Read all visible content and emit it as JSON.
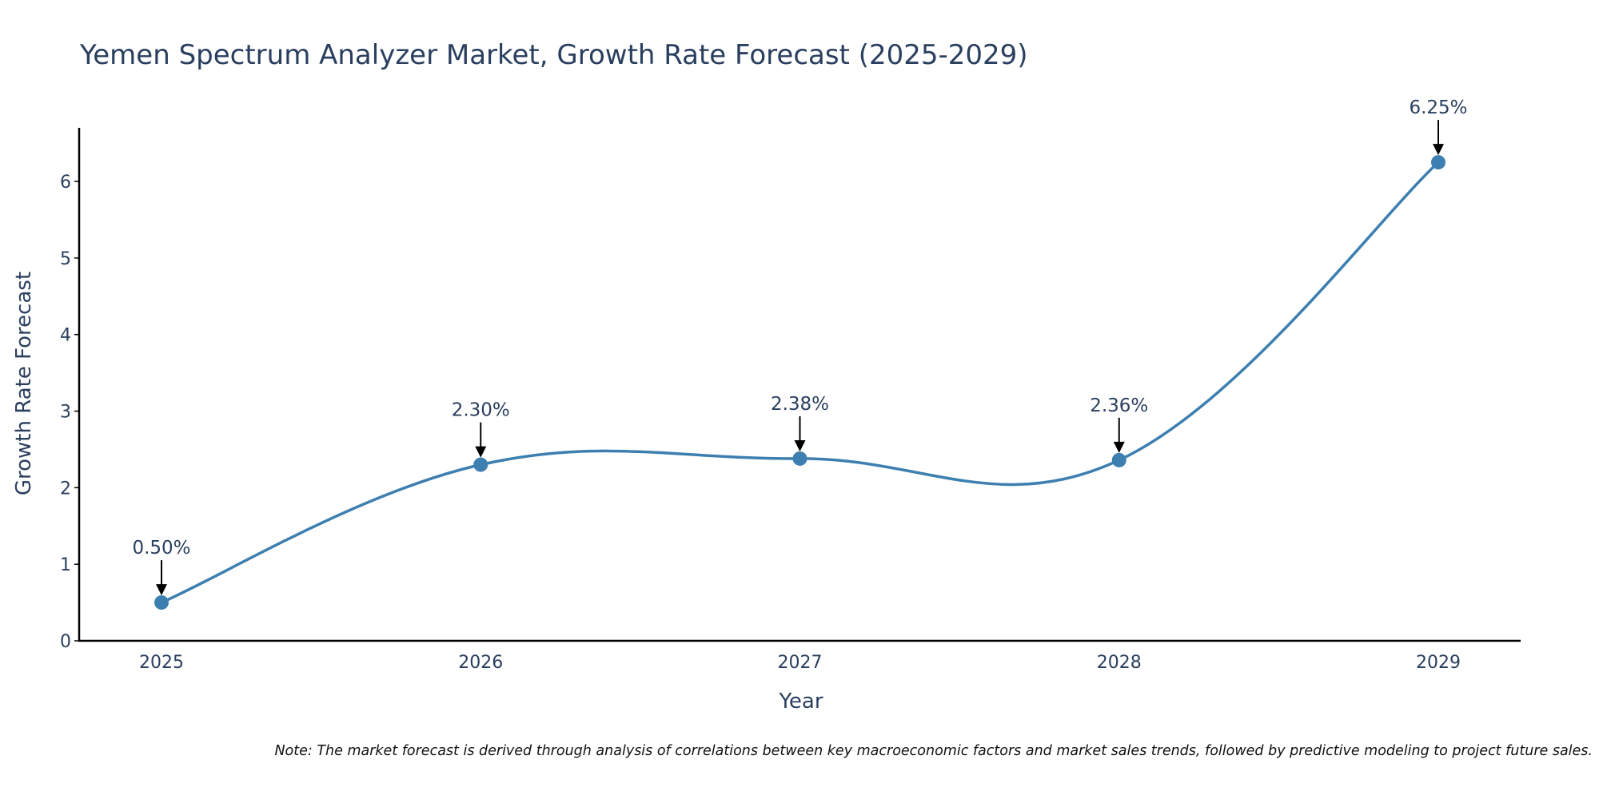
{
  "chart_data": {
    "type": "line",
    "title": "Yemen Spectrum Analyzer Market, Growth Rate Forecast (2025-2029)",
    "xlabel": "Year",
    "ylabel": "Growth Rate Forecast",
    "categories": [
      "2025",
      "2026",
      "2027",
      "2028",
      "2029"
    ],
    "values": [
      0.5,
      2.3,
      2.38,
      2.36,
      6.25
    ],
    "data_labels": [
      "0.50%",
      "2.30%",
      "2.38%",
      "2.36%",
      "6.25%"
    ],
    "ylim": [
      0,
      6.7
    ],
    "yticks": [
      0,
      1,
      2,
      3,
      4,
      5,
      6
    ],
    "line_shape": "spline",
    "series_color": "#3d7fb0",
    "grid": false,
    "legend": "none"
  },
  "note": "Note: The market forecast is derived through analysis of correlations between key macroeconomic factors and market sales trends, followed by predictive modeling to project future sales."
}
